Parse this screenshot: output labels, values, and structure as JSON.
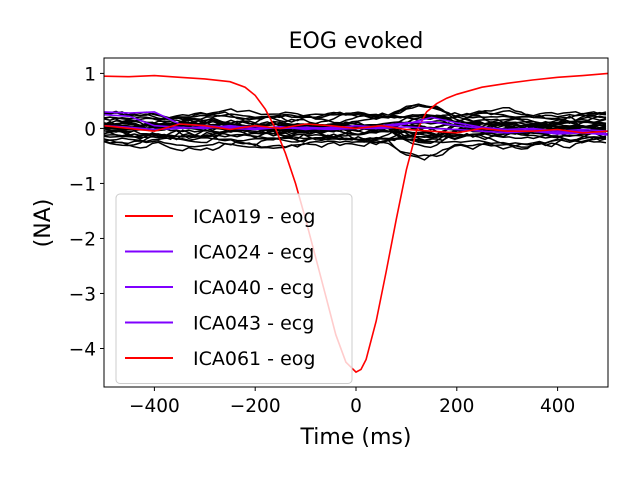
{
  "chart_data": {
    "type": "line",
    "title": "EOG evoked",
    "xlabel": "Time (ms)",
    "ylabel": "(NA)",
    "xlim": [
      -500,
      500
    ],
    "ylim": [
      -4.7,
      1.28
    ],
    "xticks": [
      -400,
      -200,
      0,
      200,
      400
    ],
    "xtick_labels": [
      "−400",
      "−200",
      "0",
      "200",
      "400"
    ],
    "yticks": [
      1,
      0,
      -1,
      -2,
      -3,
      -4
    ],
    "ytick_labels": [
      "1",
      "0",
      "−1",
      "−2",
      "−3",
      "−4"
    ],
    "legend_position": "lower-left",
    "grid": false,
    "colors": {
      "eog": "#ff0000",
      "ecg": "#7f00ff",
      "other": "#000000"
    },
    "series": [
      {
        "name": "ICA019 - eog",
        "color": "#ff0000",
        "x": [
          -500,
          -450,
          -400,
          -350,
          -300,
          -250,
          -220,
          -200,
          -180,
          -160,
          -140,
          -120,
          -100,
          -80,
          -60,
          -40,
          -20,
          0,
          10,
          20,
          40,
          60,
          80,
          100,
          120,
          140,
          160,
          180,
          200,
          250,
          300,
          350,
          400,
          450,
          500
        ],
        "y": [
          0.95,
          0.94,
          0.96,
          0.93,
          0.9,
          0.85,
          0.75,
          0.6,
          0.35,
          0.0,
          -0.45,
          -1.0,
          -1.65,
          -2.35,
          -3.05,
          -3.75,
          -4.25,
          -4.43,
          -4.38,
          -4.2,
          -3.5,
          -2.6,
          -1.65,
          -0.75,
          -0.05,
          0.3,
          0.45,
          0.55,
          0.62,
          0.75,
          0.82,
          0.88,
          0.93,
          0.96,
          1.0
        ]
      },
      {
        "name": "ICA024 - ecg",
        "color": "#7f00ff",
        "x": [
          -500,
          -450,
          -400,
          -350,
          -300,
          -250,
          -200,
          -150,
          -100,
          -50,
          0,
          50,
          100,
          150,
          200,
          250,
          300,
          350,
          400,
          450,
          500
        ],
        "y": [
          0.25,
          0.22,
          0.05,
          0.02,
          0.0,
          0.05,
          0.0,
          0.03,
          -0.02,
          0.02,
          0.0,
          0.05,
          0.1,
          0.12,
          0.05,
          0.0,
          -0.05,
          -0.03,
          -0.08,
          -0.05,
          -0.1
        ]
      },
      {
        "name": "ICA040 - ecg",
        "color": "#7f00ff",
        "x": [
          -500,
          -450,
          -400,
          -350,
          -300,
          -250,
          -200,
          -150,
          -100,
          -50,
          0,
          50,
          100,
          150,
          200,
          250,
          300,
          350,
          400,
          450,
          500
        ],
        "y": [
          0.3,
          0.28,
          0.3,
          0.08,
          0.05,
          0.02,
          0.04,
          0.0,
          0.02,
          0.0,
          0.05,
          0.02,
          0.08,
          0.2,
          0.1,
          0.02,
          -0.02,
          0.0,
          -0.05,
          -0.02,
          -0.05
        ]
      },
      {
        "name": "ICA043 - ecg",
        "color": "#7f00ff",
        "x": [
          -500,
          -450,
          -400,
          -350,
          -300,
          -250,
          -200,
          -150,
          -100,
          -50,
          0,
          50,
          100,
          150,
          200,
          250,
          300,
          350,
          400,
          450,
          500
        ],
        "y": [
          0.05,
          0.02,
          -0.02,
          0.0,
          0.03,
          0.0,
          -0.02,
          0.02,
          0.0,
          -0.02,
          0.0,
          0.0,
          0.03,
          0.0,
          -0.02,
          -0.05,
          -0.08,
          -0.05,
          -0.1,
          -0.08,
          -0.12
        ]
      },
      {
        "name": "ICA061 - eog",
        "color": "#ff0000",
        "x": [
          -500,
          -450,
          -400,
          -350,
          -300,
          -250,
          -200,
          -150,
          -100,
          -50,
          0,
          50,
          100,
          150,
          200,
          250,
          300,
          350,
          400,
          450,
          500
        ],
        "y": [
          0.05,
          0.0,
          -0.05,
          0.08,
          0.05,
          -0.02,
          0.05,
          0.0,
          0.08,
          0.05,
          0.0,
          0.05,
          -0.02,
          -0.05,
          -0.08,
          0.0,
          -0.05,
          -0.05,
          -0.02,
          -0.08,
          -0.05
        ]
      }
    ]
  }
}
